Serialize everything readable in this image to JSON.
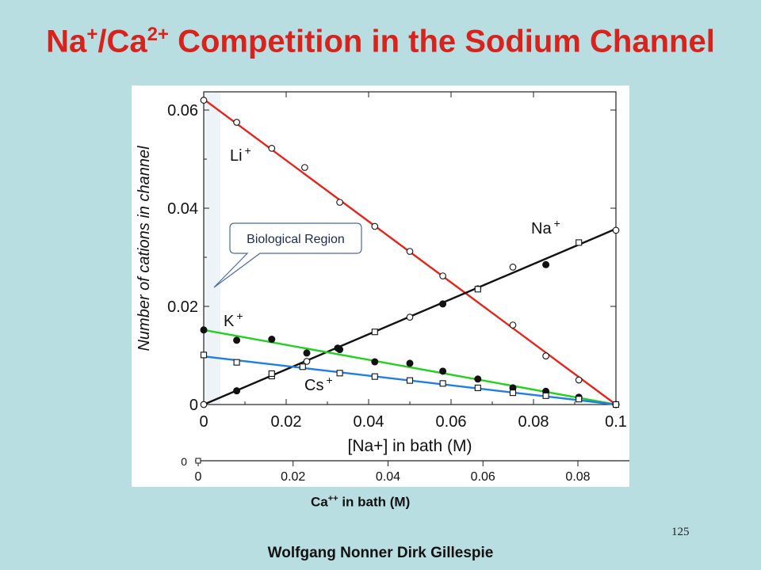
{
  "slide": {
    "title_a": "Na",
    "title_a_sup": "+",
    "title_b": "/Ca",
    "title_b_sup": "2+",
    "title_c": " Competition in the Sodium Channel",
    "ca_label_a": "Ca",
    "ca_label_sup": "++",
    "ca_label_b": " in bath (M)",
    "page_number": "125",
    "authors": "Wolfgang Nonner  Dirk Gillespie"
  },
  "chart_data": [
    {
      "type": "scatter",
      "xlabel": "[Na+] in bath (M)",
      "ylabel": "Number of cations in channel",
      "xlim": [
        0,
        0.1
      ],
      "ylim": [
        0,
        0.065
      ],
      "x_ticks": [
        "0",
        "0.02",
        "0.04",
        "0.06",
        "0.08",
        "0.1"
      ],
      "y_ticks": [
        "0",
        "0.02",
        "0.04",
        "0.06"
      ],
      "annotation": "Biological Region",
      "series": [
        {
          "name": "Li+",
          "color": "#e8231a",
          "fit": [
            [
              0,
              0.0622
            ],
            [
              0.1,
              0
            ]
          ],
          "points": [
            [
              0,
              0.062
            ],
            [
              0.008,
              0.0575
            ],
            [
              0.0165,
              0.0522
            ],
            [
              0.0245,
              0.0483
            ],
            [
              0.033,
              0.0412
            ],
            [
              0.0415,
              0.0363
            ],
            [
              0.05,
              0.0312
            ],
            [
              0.058,
              0.0262
            ],
            [
              0.0665,
              0.0236
            ],
            [
              0.075,
              0.0162
            ],
            [
              0.083,
              0.0099
            ],
            [
              0.091,
              0.005
            ],
            [
              0.1,
              0
            ]
          ]
        },
        {
          "name": "Na+",
          "color": "#111111",
          "fit": [
            [
              0,
              0
            ],
            [
              0.1,
              0.0358
            ]
          ],
          "points": [
            [
              0,
              0
            ],
            [
              0.008,
              0.0028
            ],
            [
              0.0165,
              0.0058
            ],
            [
              0.025,
              0.0088
            ],
            [
              0.033,
              0.0112
            ],
            [
              0.0415,
              0.0148
            ],
            [
              0.05,
              0.0178
            ],
            [
              0.058,
              0.0205
            ],
            [
              0.0665,
              0.0235
            ],
            [
              0.075,
              0.028
            ],
            [
              0.083,
              0.0285
            ],
            [
              0.091,
              0.033
            ],
            [
              0.1,
              0.0355
            ]
          ]
        },
        {
          "name": "K+",
          "color": "#22d11f",
          "fit": [
            [
              0,
              0.0152
            ],
            [
              0.1,
              0
            ]
          ],
          "points": [
            [
              0,
              0.0152
            ],
            [
              0.008,
              0.0131
            ],
            [
              0.0165,
              0.0133
            ],
            [
              0.025,
              0.0105
            ],
            [
              0.0325,
              0.0115
            ],
            [
              0.0415,
              0.0087
            ],
            [
              0.05,
              0.0084
            ],
            [
              0.058,
              0.0068
            ],
            [
              0.0665,
              0.0052
            ],
            [
              0.075,
              0.0034
            ],
            [
              0.083,
              0.0027
            ],
            [
              0.091,
              0.0015
            ],
            [
              0.1,
              0
            ]
          ]
        },
        {
          "name": "Cs+",
          "color": "#1e7ee6",
          "fit": [
            [
              0,
              0.0098
            ],
            [
              0.1,
              0
            ]
          ],
          "points": [
            [
              0,
              0.0101
            ],
            [
              0.008,
              0.0086
            ],
            [
              0.0165,
              0.0063
            ],
            [
              0.024,
              0.0077
            ],
            [
              0.033,
              0.0064
            ],
            [
              0.0415,
              0.0057
            ],
            [
              0.05,
              0.0049
            ],
            [
              0.058,
              0.0043
            ],
            [
              0.0665,
              0.0034
            ],
            [
              0.075,
              0.0024
            ],
            [
              0.083,
              0.0018
            ],
            [
              0.091,
              0.0011
            ],
            [
              0.1,
              0
            ]
          ]
        }
      ]
    },
    {
      "type": "axis",
      "xlabel": "Ca++ in bath (M)",
      "x_ticks": [
        "0",
        "0.02",
        "0.04",
        "0.06",
        "0.08"
      ],
      "y_ticks": [
        "0"
      ],
      "x": [
        0,
        0.02,
        0.04,
        0.06,
        0.08
      ]
    }
  ]
}
